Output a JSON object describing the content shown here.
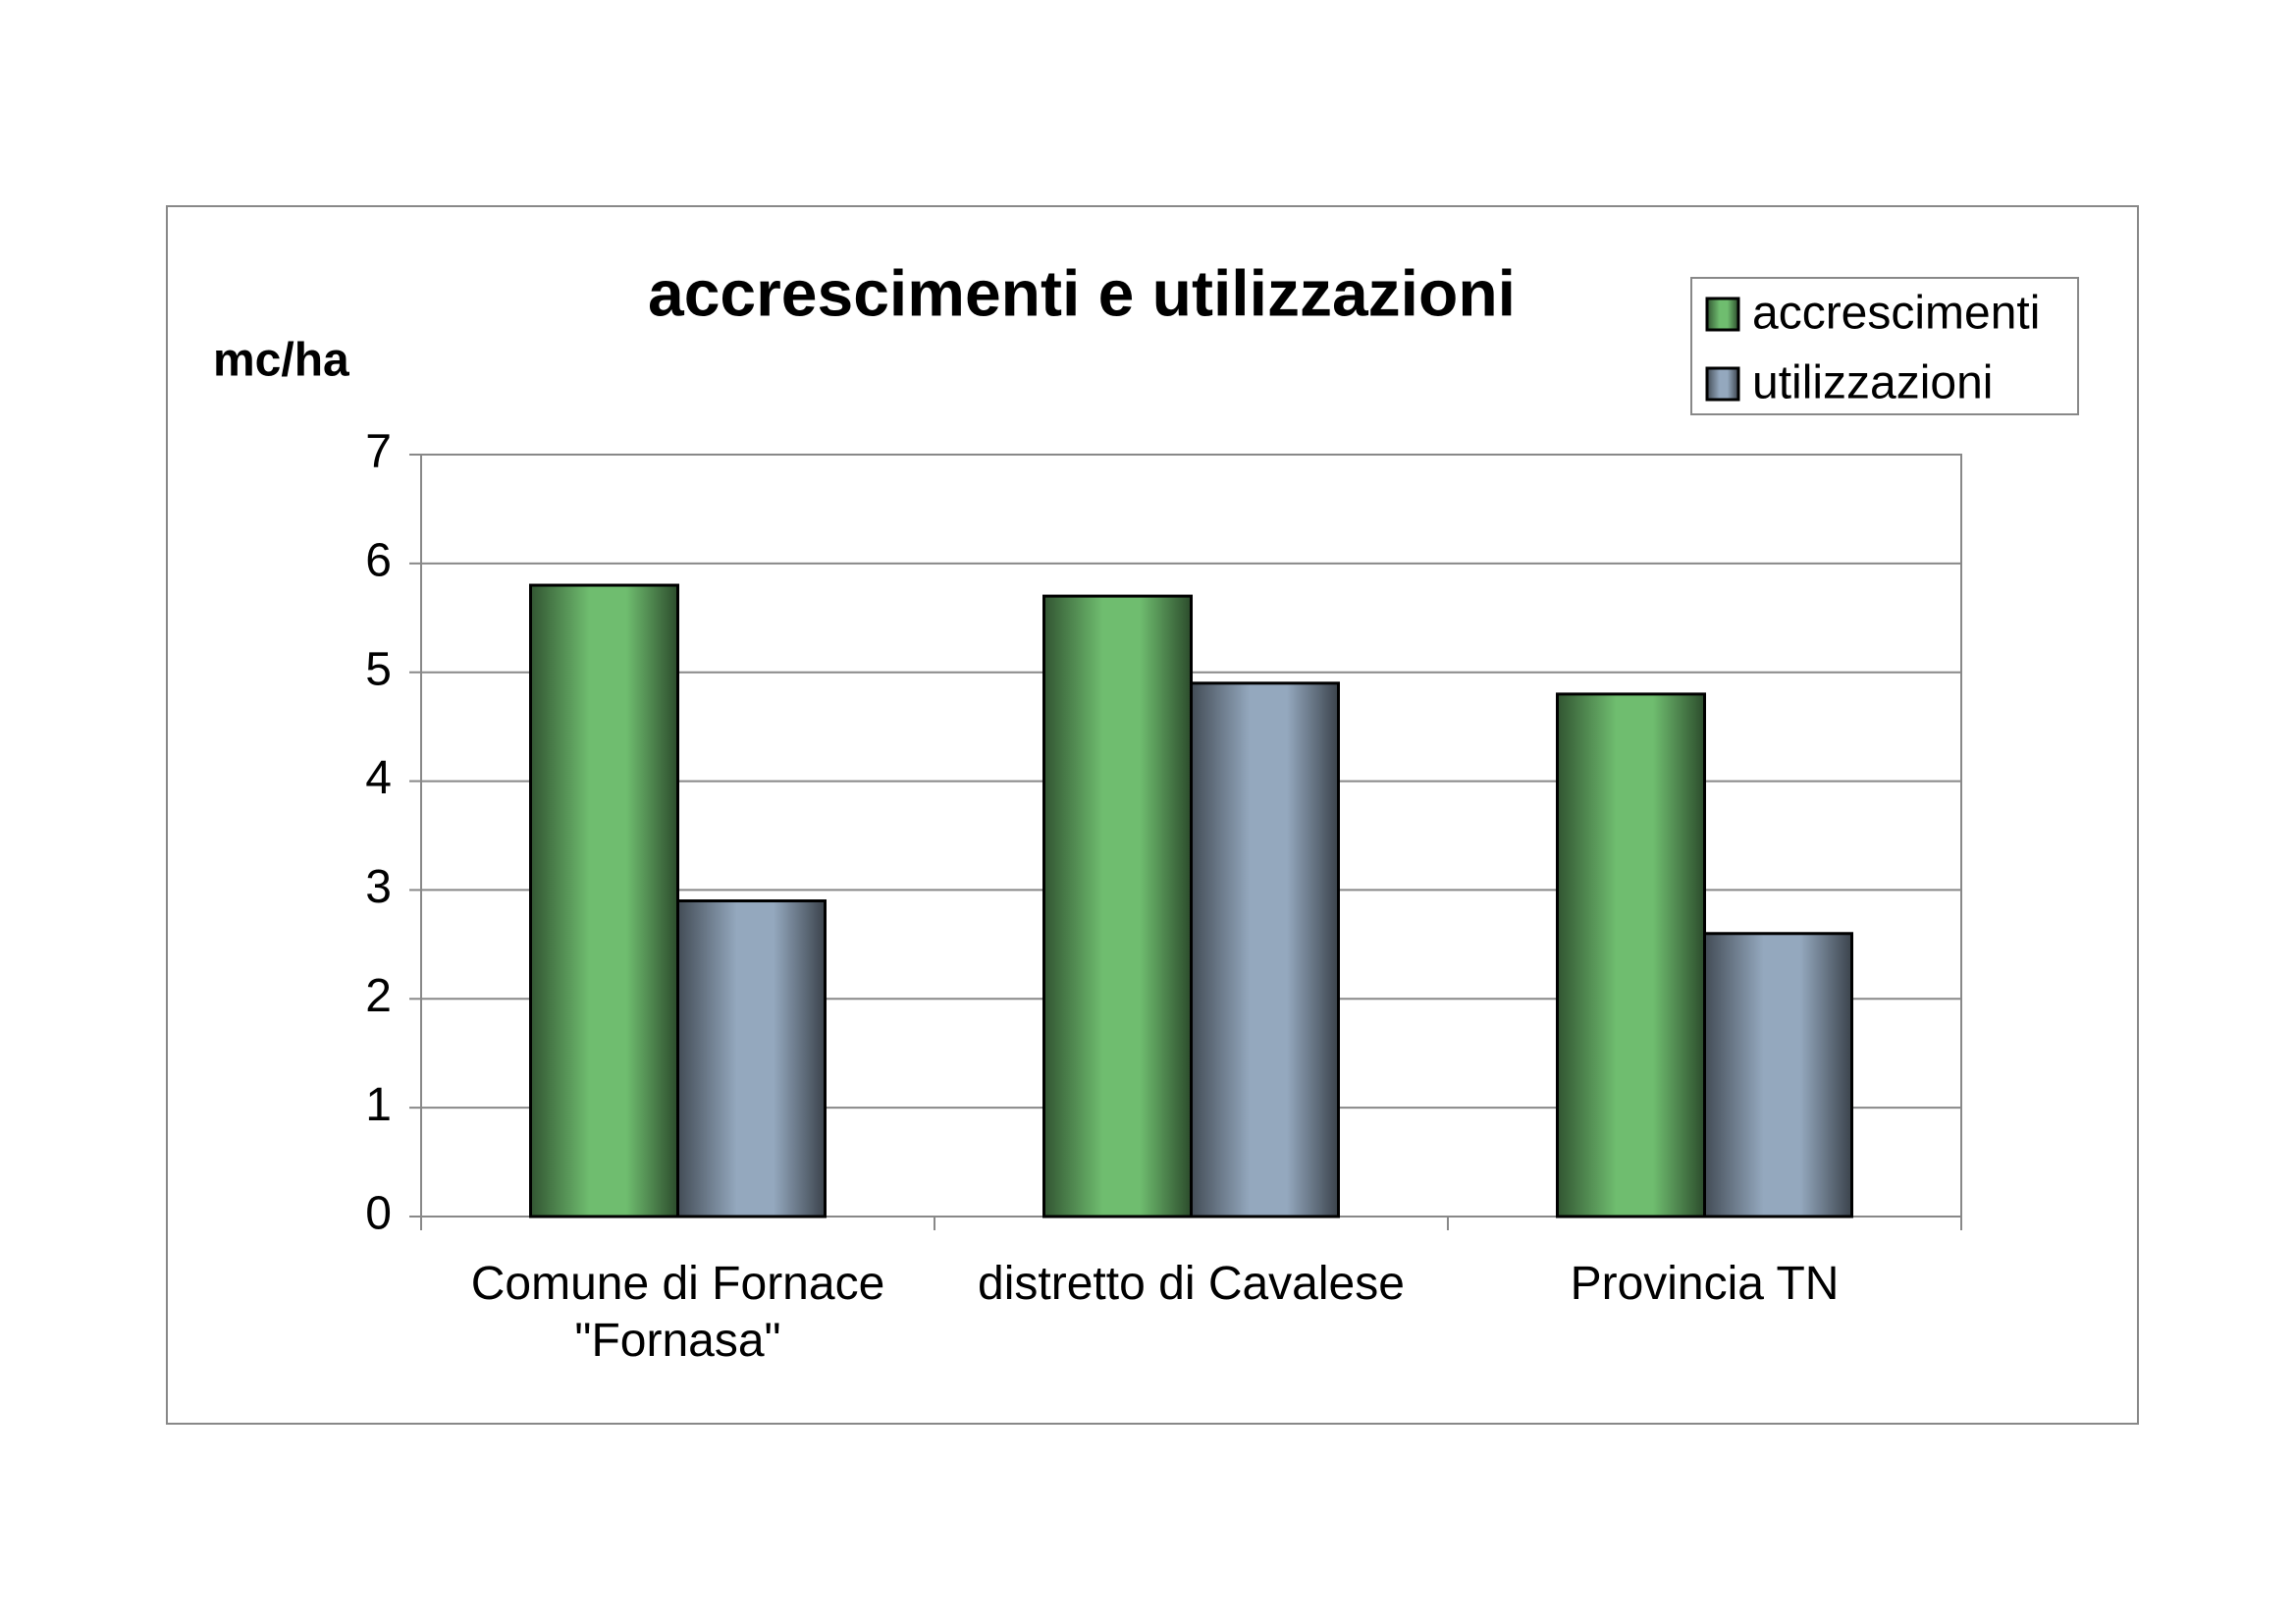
{
  "chart_data": {
    "type": "bar",
    "title": "accrescimenti e utilizzazioni",
    "y_label": "mc/ha",
    "categories": [
      [
        "Comune di Fornace",
        "\"Fornasa\""
      ],
      [
        "distretto di Cavalese"
      ],
      [
        "Provincia TN"
      ]
    ],
    "series": [
      {
        "name": "accrescimenti",
        "color": "#6fbd6f",
        "values": [
          5.8,
          5.7,
          4.8
        ]
      },
      {
        "name": "utilizzazioni",
        "color": "#94a8be",
        "values": [
          2.9,
          4.9,
          2.6
        ]
      }
    ],
    "ylim": [
      0,
      7
    ],
    "yticks": [
      0,
      1,
      2,
      3,
      4,
      5,
      6,
      7
    ],
    "grid": true,
    "legend": "top-right"
  }
}
